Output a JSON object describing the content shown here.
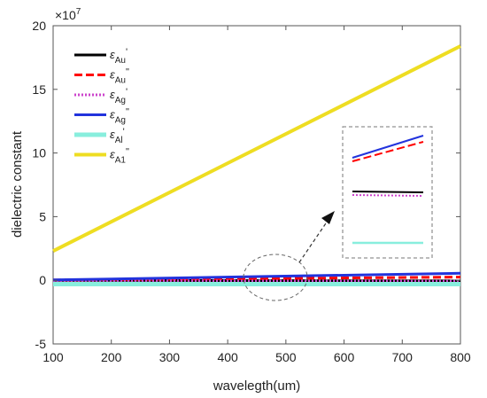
{
  "chart_data": {
    "type": "line",
    "xlabel": "wavelegth(um)",
    "ylabel": "dielectric constant",
    "y_exponent_label": "×10",
    "y_exponent_power": "7",
    "xlim": [
      100,
      800
    ],
    "ylim": [
      -5,
      20
    ],
    "xticks": [
      "100",
      "200",
      "300",
      "400",
      "500",
      "600",
      "700",
      "800"
    ],
    "yticks": [
      "-5",
      "0",
      "5",
      "10",
      "15",
      "20"
    ],
    "grid": false,
    "legend_position": "top-left",
    "series": [
      {
        "name": "εAu'",
        "symbol": "ε",
        "sub": "Au",
        "prime": "'",
        "color": "#000000",
        "dash": "solid",
        "width": 3,
        "x": [
          100,
          800
        ],
        "y": [
          0.0,
          -0.05
        ]
      },
      {
        "name": "εAu\"",
        "symbol": "ε",
        "sub": "Au",
        "prime": "\"",
        "color": "#ff0000",
        "dash": "dashed",
        "width": 3,
        "x": [
          100,
          800
        ],
        "y": [
          0.02,
          0.25
        ]
      },
      {
        "name": "εAg'",
        "symbol": "ε",
        "sub": "Ag",
        "prime": "'",
        "color": "#cc44cc",
        "dash": "dotted",
        "width": 3,
        "x": [
          100,
          800
        ],
        "y": [
          -0.02,
          -0.08
        ]
      },
      {
        "name": "εAg\"",
        "symbol": "ε",
        "sub": "Ag",
        "prime": "\"",
        "color": "#2233dd",
        "dash": "solid",
        "width": 3,
        "x": [
          100,
          800
        ],
        "y": [
          0.03,
          0.55
        ]
      },
      {
        "name": "εAl'",
        "symbol": "ε",
        "sub": "Al",
        "prime": "'",
        "color": "#88eedd",
        "dash": "solid",
        "width": 5,
        "x": [
          100,
          800
        ],
        "y": [
          -0.3,
          -0.3
        ]
      },
      {
        "name": "εA1\"",
        "symbol": "ε",
        "sub": "A1",
        "prime": "\"",
        "color": "#eedd22",
        "dash": "solid",
        "width": 4,
        "x": [
          100,
          800
        ],
        "y": [
          2.3,
          18.4
        ]
      }
    ]
  }
}
